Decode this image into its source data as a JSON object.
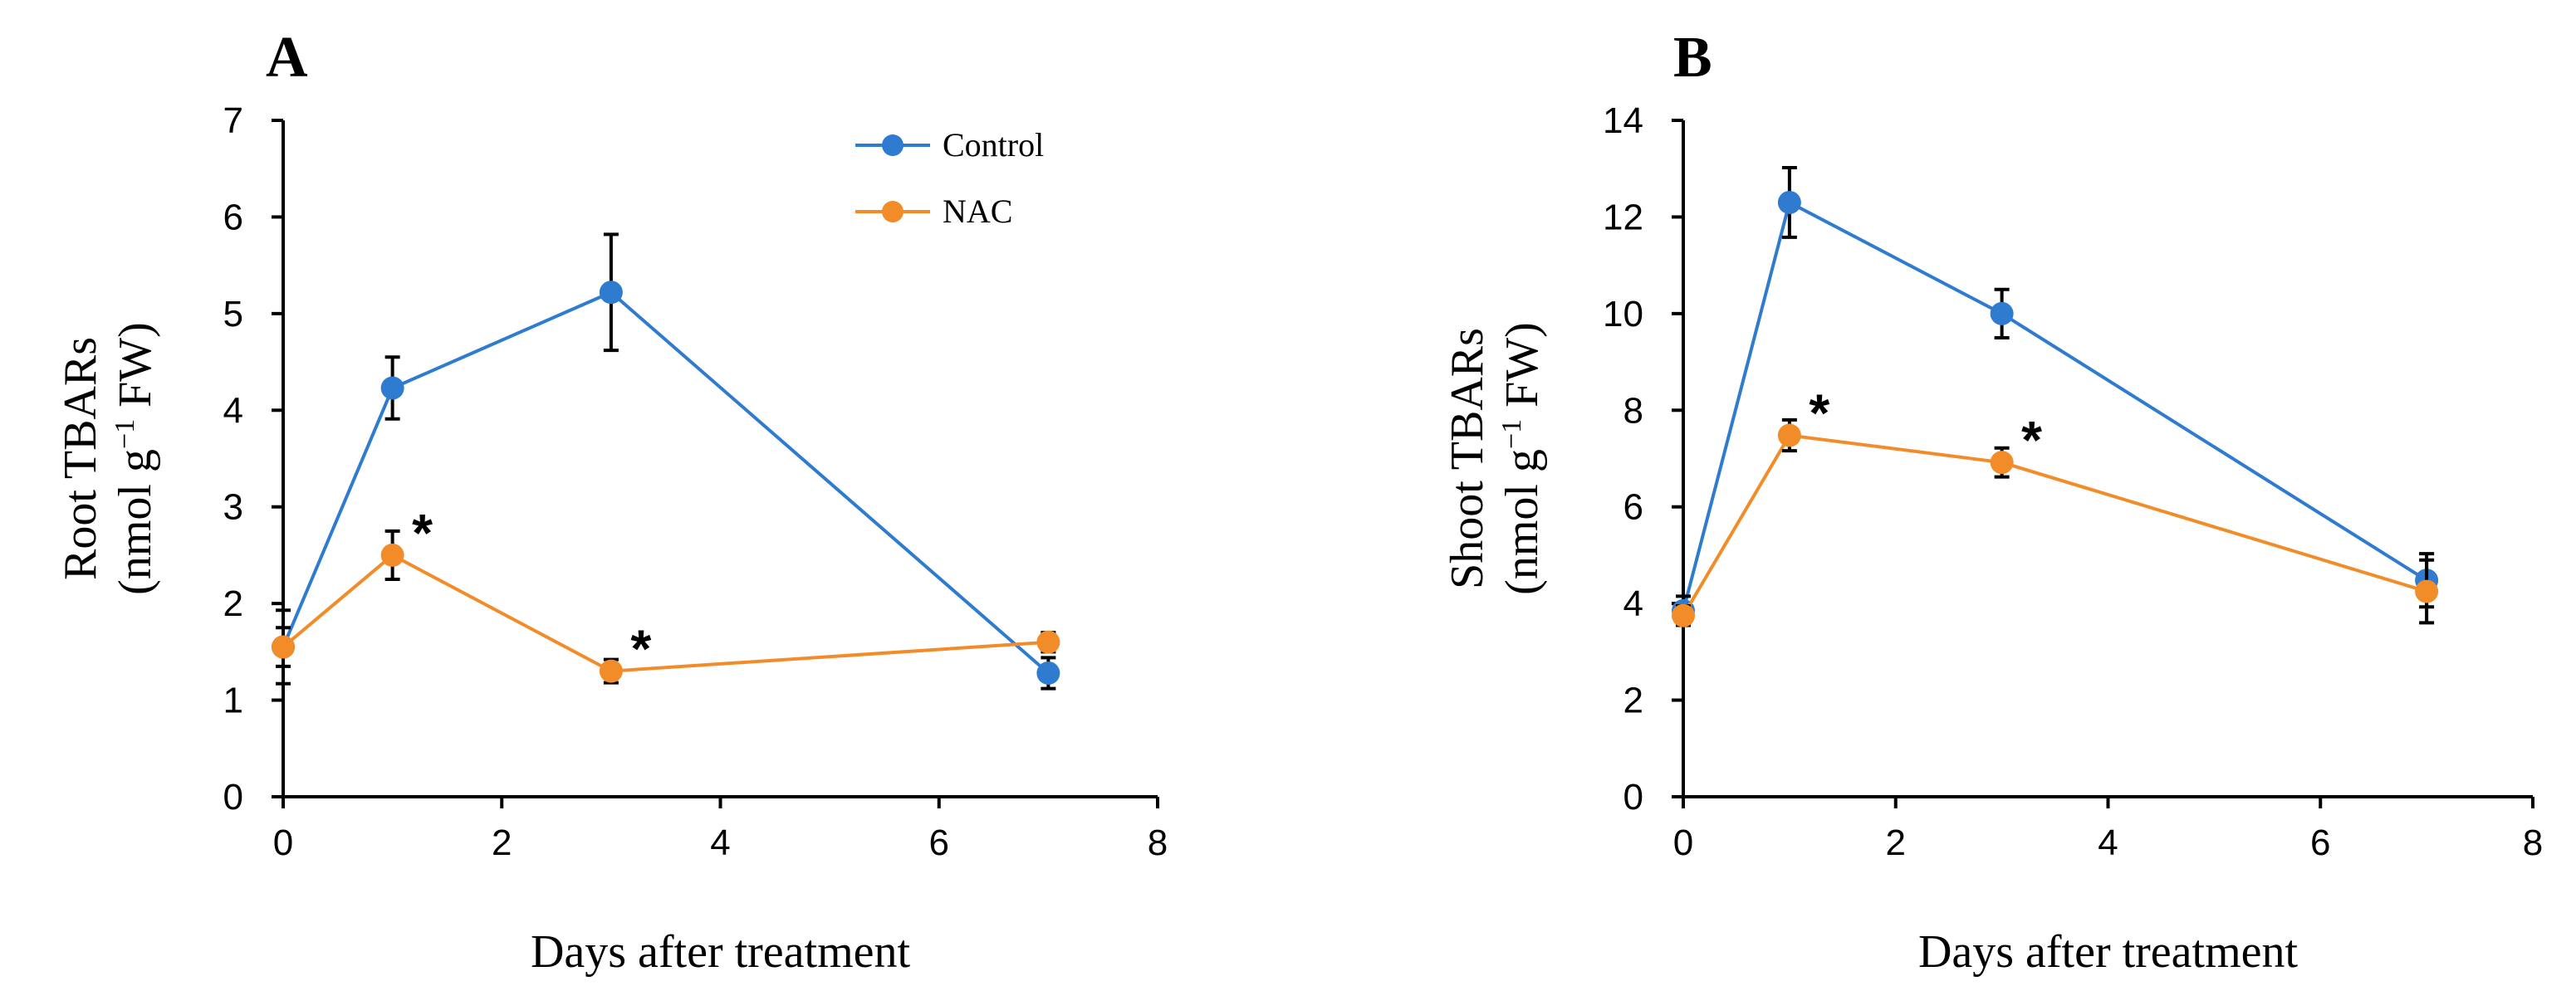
{
  "chart_data": [
    {
      "panel": "A",
      "type": "line",
      "xlabel": "Days after treatment",
      "ylabel_line1": "Root TBARs",
      "ylabel_line2": "(nmol g",
      "ylabel_sup": "−1",
      "ylabel_tail": " FW)",
      "xlim": [
        0,
        8
      ],
      "ylim": [
        0,
        7
      ],
      "xticks": [
        0,
        2,
        4,
        6,
        8
      ],
      "yticks": [
        0,
        1,
        2,
        3,
        4,
        5,
        6,
        7
      ],
      "x": [
        0,
        1,
        3,
        7
      ],
      "series": [
        {
          "name": "Control",
          "color": "#2E7BD0",
          "values": [
            1.55,
            4.23,
            5.22,
            1.28
          ],
          "errors": [
            0.38,
            0.32,
            0.6,
            0.16
          ]
        },
        {
          "name": "NAC",
          "color": "#F28C28",
          "values": [
            1.55,
            2.5,
            1.3,
            1.6
          ],
          "errors": [
            0.2,
            0.25,
            0.12,
            0.1
          ]
        }
      ],
      "annotations": [
        {
          "text": "*",
          "x": 1,
          "y": 2.5
        },
        {
          "text": "*",
          "x": 3,
          "y": 1.3
        }
      ],
      "legend": "top-right"
    },
    {
      "panel": "B",
      "type": "line",
      "xlabel": "Days after treatment",
      "ylabel_line1": "Shoot TBARs",
      "ylabel_line2": "(nmol g",
      "ylabel_sup": "−1",
      "ylabel_tail": " FW)",
      "xlim": [
        0,
        8
      ],
      "ylim": [
        0,
        14
      ],
      "xticks": [
        0,
        2,
        4,
        6,
        8
      ],
      "yticks": [
        0,
        2,
        4,
        6,
        8,
        10,
        12,
        14
      ],
      "x": [
        0,
        1,
        3,
        7
      ],
      "series": [
        {
          "name": "Control",
          "color": "#2E7BD0",
          "values": [
            3.85,
            12.3,
            10.0,
            4.48
          ],
          "errors": [
            0.3,
            0.72,
            0.5,
            0.55
          ]
        },
        {
          "name": "NAC",
          "color": "#F28C28",
          "values": [
            3.75,
            7.48,
            6.92,
            4.25
          ],
          "errors": [
            0.2,
            0.32,
            0.3,
            0.65
          ]
        }
      ],
      "annotations": [
        {
          "text": "*",
          "x": 1,
          "y": 7.48
        },
        {
          "text": "*",
          "x": 3,
          "y": 6.92
        }
      ],
      "legend": "none"
    }
  ]
}
